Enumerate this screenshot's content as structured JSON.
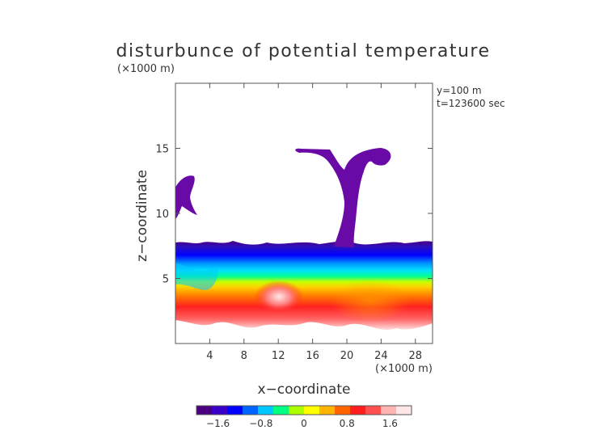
{
  "chart_data": {
    "type": "heatmap",
    "title": "disturbunce of potential temperature",
    "y_unit": "(×1000 m)",
    "x_unit": "(×1000 m)",
    "xlabel": "x−coordinate",
    "ylabel": "z−coordinate",
    "info_lines": [
      "y=100  m",
      "t=123600 sec"
    ],
    "xlim": [
      0,
      30
    ],
    "ylim": [
      0,
      20
    ],
    "x_ticks": [
      4,
      8,
      12,
      16,
      20,
      24,
      28
    ],
    "x_tick_labels": [
      "4",
      "8",
      "12",
      "16",
      "20",
      "24",
      "28"
    ],
    "y_ticks": [
      5,
      10,
      15
    ],
    "y_tick_labels": [
      "5",
      "10",
      "15"
    ],
    "colorbar": {
      "range": [
        -2.0,
        2.0
      ],
      "ticks": [
        -1.6,
        -0.8,
        0,
        0.8,
        1.6
      ],
      "tick_labels": [
        "−1.6",
        "−0.8",
        "0",
        "0.8",
        "1.6"
      ],
      "colors": [
        "#4b0082",
        "#3a00c8",
        "#0000ff",
        "#0064ff",
        "#00c8ff",
        "#00ff80",
        "#aaff00",
        "#ffff00",
        "#ffb400",
        "#ff6400",
        "#ff1e1e",
        "#ff5050",
        "#ffb4b4",
        "#ffe6e6"
      ]
    },
    "regions": {
      "main_band": {
        "z_bottom": 1.8,
        "z_top": 7.7,
        "value_range": [
          -2.0,
          2.0
        ]
      },
      "plume_column": {
        "x_range": [
          19.4,
          22.2
        ],
        "z_range": [
          7.5,
          15.0
        ],
        "value": -2.0
      },
      "plume_cap": {
        "x_range": [
          13.8,
          25.0
        ],
        "z_range": [
          13.7,
          15.0
        ],
        "value": -2.0
      },
      "left_cloud": {
        "x_range": [
          0,
          2.5
        ],
        "z_range": [
          9.5,
          12.9
        ],
        "value": -2.0
      }
    }
  }
}
